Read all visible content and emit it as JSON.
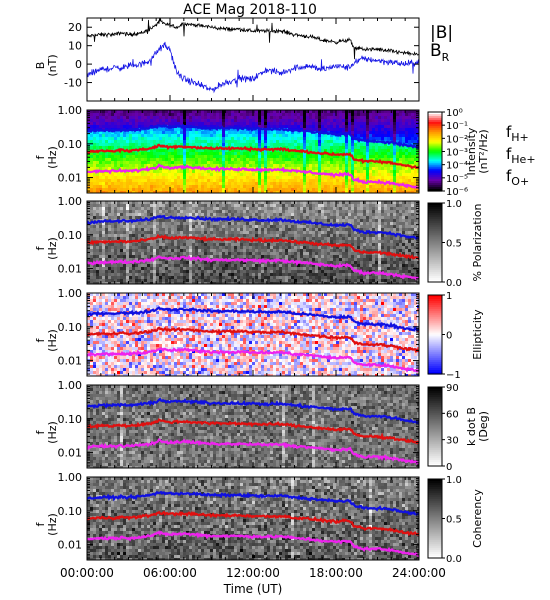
{
  "title": "ACE Mag 2018-110",
  "colors": {
    "axis": "#000000",
    "btot": "#000000",
    "br": "#1a1ae6",
    "f_h": "#1010e0",
    "f_he": "#e01010",
    "f_o": "#ee22ee"
  },
  "chart_data": [
    {
      "id": "mag",
      "type": "line",
      "ylabel": "B\n(nT)",
      "ylim": [
        -20,
        25
      ],
      "yticks": [
        -10,
        0,
        10,
        20
      ],
      "x_range_hours": [
        0,
        24
      ],
      "series": [
        {
          "name": "|B|",
          "x": [
            0,
            1,
            2,
            2.5,
            3,
            4,
            4.5,
            4.8,
            5.0,
            5.2,
            5.5,
            6,
            6.5,
            7,
            8,
            9,
            10,
            11,
            12,
            13,
            14,
            15,
            16,
            17,
            18,
            19,
            19.3,
            20,
            21,
            22,
            23,
            24
          ],
          "values": [
            15,
            16,
            16,
            17,
            16,
            17,
            19,
            20,
            21,
            24,
            22,
            21,
            20,
            22,
            21,
            20,
            19,
            19,
            18,
            18,
            18,
            16,
            15,
            13,
            12,
            13,
            9,
            8,
            8,
            7,
            6,
            5
          ]
        },
        {
          "name": "B",
          "subscript": "R",
          "x": [
            0,
            1,
            2,
            2.5,
            3,
            4,
            4.5,
            5.0,
            5.5,
            6,
            6.5,
            7,
            8,
            9,
            10,
            11,
            12,
            13,
            14,
            15,
            16,
            17,
            18,
            19,
            19.3,
            20,
            21,
            22,
            23,
            24
          ],
          "values": [
            -6,
            -3,
            -2,
            -2,
            -1,
            0,
            2,
            6,
            10,
            8,
            -5,
            -8,
            -11,
            -14,
            -10,
            -8,
            -8,
            -3,
            -5,
            -2,
            -1,
            -3,
            -1,
            -2,
            1,
            3,
            2,
            1,
            0,
            1
          ]
        }
      ]
    },
    {
      "id": "power",
      "type": "heatmap",
      "ylabel": "f\n(Hz)",
      "yticks": [
        "1.00",
        "0.10",
        "0.01"
      ],
      "colorbar": {
        "title": "Intensity\n(nT²/Hz)",
        "ticks": [
          "10⁰",
          "10⁻¹",
          "10⁻²",
          "10⁻³",
          "10⁻⁴",
          "10⁻⁵",
          "10⁻⁶"
        ],
        "stops": [
          "#ffffff",
          "#ff1010",
          "#ff9900",
          "#ffff00",
          "#00ff00",
          "#00ffff",
          "#0000ff",
          "#6a00aa",
          "#000000"
        ]
      },
      "labels": [
        {
          "base": "f",
          "sub": "H+",
          "color": "#1010e0"
        },
        {
          "base": "f",
          "sub": "He+",
          "color": "#e01010"
        },
        {
          "base": "f",
          "sub": "O+",
          "color": "#ee22ee"
        }
      ]
    },
    {
      "id": "polarization",
      "type": "heatmap",
      "ylabel": "f\n(Hz)",
      "yticks": [
        "1.00",
        "0.10",
        "0.01"
      ],
      "colorbar": {
        "title": "% Polarization",
        "ticks": [
          "1.0",
          "0.5",
          "0.0"
        ],
        "stops": [
          "#000000",
          "#808080",
          "#ffffff"
        ]
      }
    },
    {
      "id": "ellipticity",
      "type": "heatmap",
      "ylabel": "f\n(Hz)",
      "yticks": [
        "1.00",
        "0.10",
        "0.01"
      ],
      "colorbar": {
        "title": "Ellipticity",
        "ticks": [
          "1",
          "0",
          "−1"
        ],
        "stops": [
          "#ff0000",
          "#ffffff",
          "#0000ff"
        ]
      }
    },
    {
      "id": "kdotb",
      "type": "heatmap",
      "ylabel": "f\n(Hz)",
      "yticks": [
        "1.00",
        "0.10",
        "0.01"
      ],
      "colorbar": {
        "title": "k dot B\n(Deg)",
        "ticks": [
          "90",
          "60",
          "30",
          "0"
        ],
        "stops": [
          "#000000",
          "#808080",
          "#ffffff"
        ]
      }
    },
    {
      "id": "coherency",
      "type": "heatmap",
      "ylabel": "f\n(Hz)",
      "yticks": [
        "1.00",
        "0.10",
        "0.01"
      ],
      "colorbar": {
        "title": "Coherency",
        "ticks": [
          "1.0",
          "0.5",
          "0.0"
        ],
        "stops": [
          "#000000",
          "#808080",
          "#ffffff"
        ]
      }
    }
  ],
  "gyrofrequency_lines": {
    "x_hours": [
      0,
      1,
      2,
      2.5,
      3,
      4,
      4.5,
      5.0,
      5.2,
      5.5,
      6,
      7,
      8,
      9,
      10,
      11,
      12,
      13,
      14,
      15,
      16,
      17,
      18,
      19,
      19.3,
      20,
      21,
      22,
      23,
      24
    ],
    "f_H_hz": [
      0.23,
      0.25,
      0.25,
      0.26,
      0.25,
      0.27,
      0.29,
      0.32,
      0.36,
      0.34,
      0.32,
      0.33,
      0.31,
      0.29,
      0.29,
      0.29,
      0.28,
      0.27,
      0.28,
      0.25,
      0.23,
      0.21,
      0.19,
      0.2,
      0.14,
      0.12,
      0.12,
      0.11,
      0.09,
      0.08
    ],
    "f_He_hz": [
      0.058,
      0.062,
      0.062,
      0.065,
      0.062,
      0.068,
      0.073,
      0.08,
      0.09,
      0.085,
      0.08,
      0.083,
      0.078,
      0.073,
      0.073,
      0.073,
      0.07,
      0.068,
      0.07,
      0.062,
      0.058,
      0.052,
      0.048,
      0.05,
      0.035,
      0.03,
      0.03,
      0.027,
      0.023,
      0.02
    ],
    "f_O_hz": [
      0.0145,
      0.0155,
      0.0155,
      0.016,
      0.0155,
      0.017,
      0.018,
      0.02,
      0.0225,
      0.021,
      0.02,
      0.021,
      0.0195,
      0.018,
      0.018,
      0.018,
      0.0175,
      0.017,
      0.0175,
      0.0155,
      0.0145,
      0.013,
      0.012,
      0.0125,
      0.0088,
      0.0075,
      0.0075,
      0.0068,
      0.0058,
      0.005
    ]
  },
  "xaxis": {
    "title": "Time (UT)",
    "tick_hours": [
      0,
      6,
      12,
      18,
      24
    ],
    "tick_labels": [
      "00:00:00",
      "06:00:00",
      "12:00:00",
      "18:00:00",
      "24:00:00"
    ]
  }
}
